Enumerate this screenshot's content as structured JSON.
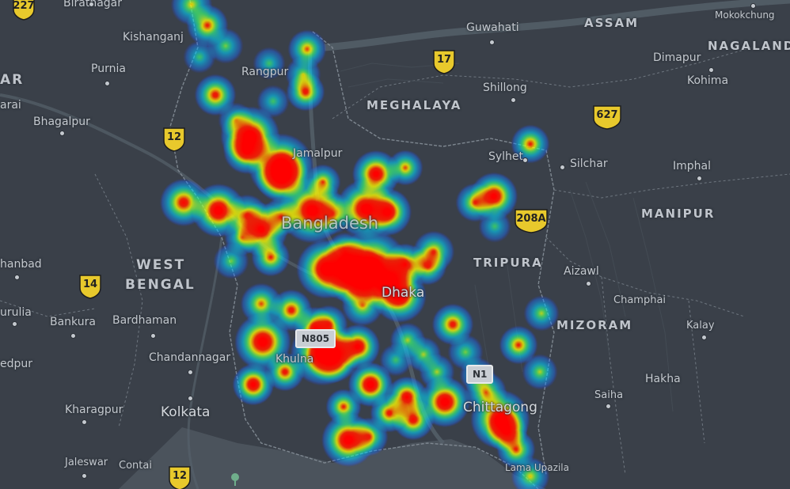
{
  "map": {
    "colors": {
      "land": "#3a4049",
      "water": "#4a525b",
      "river": "#55606a",
      "border": "#7d858e"
    },
    "labels": [
      {
        "id": "biratnagar",
        "text": "Biratnagar",
        "kind": "town"
      },
      {
        "id": "kishanganj",
        "text": "Kishanganj",
        "kind": "town"
      },
      {
        "id": "purnia",
        "text": "Purnia",
        "kind": "town"
      },
      {
        "id": "bhagalpur",
        "text": "Bhagalpur",
        "kind": "town"
      },
      {
        "id": "rangpur",
        "text": "Rangpur",
        "kind": "town"
      },
      {
        "id": "jamalpur",
        "text": "Jamalpur",
        "kind": "town"
      },
      {
        "id": "guwahati",
        "text": "Guwahati",
        "kind": "town"
      },
      {
        "id": "shillong",
        "text": "Shillong",
        "kind": "town"
      },
      {
        "id": "sylhet",
        "text": "Sylhet",
        "kind": "town"
      },
      {
        "id": "silchar",
        "text": "Silchar",
        "kind": "town"
      },
      {
        "id": "imphal",
        "text": "Imphal",
        "kind": "town"
      },
      {
        "id": "dimapur",
        "text": "Dimapur",
        "kind": "town"
      },
      {
        "id": "kohima",
        "text": "Kohima",
        "kind": "town"
      },
      {
        "id": "mokokchung",
        "text": "Mokokchung",
        "kind": "town"
      },
      {
        "id": "aizawl",
        "text": "Aizawl",
        "kind": "town"
      },
      {
        "id": "champhai",
        "text": "Champhai",
        "kind": "town"
      },
      {
        "id": "kalay",
        "text": "Kalay",
        "kind": "town"
      },
      {
        "id": "hakha",
        "text": "Hakha",
        "kind": "town"
      },
      {
        "id": "saiha",
        "text": "Saiha",
        "kind": "town"
      },
      {
        "id": "dhanbad",
        "text": "hanbad",
        "kind": "town"
      },
      {
        "id": "asansol",
        "text": "urulia",
        "kind": "town"
      },
      {
        "id": "bankura",
        "text": "Bankura",
        "kind": "town"
      },
      {
        "id": "bardhaman",
        "text": "Bardhaman",
        "kind": "town"
      },
      {
        "id": "chandannagar",
        "text": "Chandannagar",
        "kind": "town"
      },
      {
        "id": "kharagpur",
        "text": "Kharagpur",
        "kind": "town"
      },
      {
        "id": "kolkata",
        "text": "Kolkata",
        "kind": "big"
      },
      {
        "id": "jaleswar",
        "text": "Jaleswar",
        "kind": "town"
      },
      {
        "id": "contai",
        "text": "Contai",
        "kind": "town"
      },
      {
        "id": "khulna",
        "text": "Khulna",
        "kind": "town"
      },
      {
        "id": "dhaka",
        "text": "Dhaka",
        "kind": "big"
      },
      {
        "id": "chittagong",
        "text": "Chittagong",
        "kind": "big"
      },
      {
        "id": "lamaupazila",
        "text": "Lama Upazila",
        "kind": "town"
      },
      {
        "id": "medinipur",
        "text": "edpur",
        "kind": "town"
      },
      {
        "id": "araria",
        "text": "arai",
        "kind": "town"
      },
      {
        "id": "bangladesh",
        "text": "Bangladesh",
        "kind": "country"
      },
      {
        "id": "assam",
        "text": "ASSAM",
        "kind": "state"
      },
      {
        "id": "nagaland",
        "text": "NAGALAND",
        "kind": "state"
      },
      {
        "id": "meghalaya",
        "text": "MEGHALAYA",
        "kind": "state"
      },
      {
        "id": "manipur",
        "text": "MANIPUR",
        "kind": "state"
      },
      {
        "id": "tripura",
        "text": "TRIPURA",
        "kind": "state"
      },
      {
        "id": "mizoram",
        "text": "MIZORAM",
        "kind": "state"
      },
      {
        "id": "westbengal1",
        "text": "WEST",
        "kind": "state"
      },
      {
        "id": "westbengal2",
        "text": "BENGAL",
        "kind": "state"
      },
      {
        "id": "bihar",
        "text": "AR",
        "kind": "state"
      }
    ],
    "shields": [
      {
        "id": "r227",
        "text": "227"
      },
      {
        "id": "r17",
        "text": "17"
      },
      {
        "id": "r627",
        "text": "627"
      },
      {
        "id": "r12a",
        "text": "12"
      },
      {
        "id": "r208a",
        "text": "208A"
      },
      {
        "id": "r14",
        "text": "14"
      },
      {
        "id": "r12b",
        "text": "12"
      }
    ],
    "national_routes": [
      {
        "id": "n805",
        "text": "N805"
      },
      {
        "id": "n1",
        "text": "N1"
      }
    ],
    "heatmap": {
      "palette": [
        "#2040ff",
        "#00d8ff",
        "#40ff80",
        "#ffff00",
        "#ff2000"
      ],
      "points": []
    }
  }
}
